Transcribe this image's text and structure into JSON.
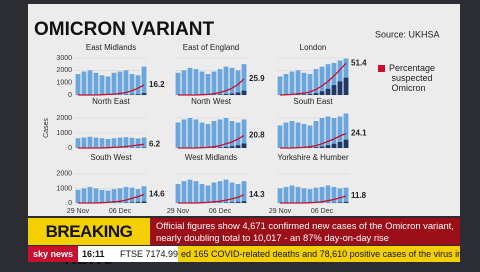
{
  "header": {
    "title": "OMICRON VARIANT",
    "source": "Source: UKHSA"
  },
  "legend": {
    "label": "Percentage suspected Omicron",
    "color": "#c8102e"
  },
  "y_axis_label": "Cases",
  "bar_color": "#6aa6dc",
  "omicron_color": "#1f3864",
  "y2lim": [
    0,
    60
  ],
  "rows": [
    {
      "ylim": [
        0,
        3000
      ],
      "yticks": [
        0,
        1000,
        2000,
        3000
      ]
    },
    {
      "ylim": [
        0,
        2400
      ],
      "yticks": [
        0,
        1000,
        2000
      ]
    },
    {
      "ylim": [
        0,
        2400
      ],
      "yticks": [
        0,
        1000,
        2000
      ]
    }
  ],
  "x_labels": [
    "29 Nov",
    "06 Dec"
  ],
  "panels": [
    {
      "name": "East Midlands",
      "cases": [
        1700,
        1900,
        2000,
        1800,
        1600,
        1500,
        1800,
        1900,
        2000,
        1700,
        1600,
        2300
      ],
      "omicron": [
        0,
        0,
        0,
        0,
        0,
        0,
        0,
        10,
        20,
        40,
        60,
        150
      ],
      "pct": [
        0,
        0,
        0,
        0,
        0.5,
        1,
        1.5,
        2.5,
        4,
        7,
        11,
        16.2
      ]
    },
    {
      "name": "East of England",
      "cases": [
        1800,
        2000,
        2200,
        2100,
        1900,
        1700,
        1900,
        2100,
        2300,
        2200,
        2000,
        2500
      ],
      "omicron": [
        0,
        0,
        0,
        0,
        0,
        10,
        20,
        40,
        80,
        120,
        200,
        350
      ],
      "pct": [
        0,
        0,
        0,
        0,
        0.5,
        1,
        2,
        4,
        7,
        11,
        17,
        25.9
      ]
    },
    {
      "name": "London",
      "cases": [
        1500,
        1700,
        1900,
        2000,
        1800,
        1700,
        2100,
        2300,
        2500,
        2600,
        2800,
        2950
      ],
      "omicron": [
        0,
        0,
        0,
        20,
        40,
        70,
        150,
        300,
        500,
        800,
        1100,
        1400
      ],
      "pct": [
        0,
        0.5,
        1,
        2,
        3,
        5,
        9,
        15,
        22,
        31,
        41,
        51.4
      ]
    },
    {
      "name": "North East",
      "cases": [
        650,
        700,
        750,
        700,
        650,
        600,
        650,
        700,
        720,
        680,
        640,
        700
      ],
      "omicron": [
        0,
        0,
        0,
        0,
        0,
        0,
        0,
        0,
        5,
        10,
        15,
        25
      ],
      "pct": [
        0,
        0,
        0,
        0,
        0,
        0.5,
        1,
        1.5,
        2.5,
        3.5,
        5,
        6.2
      ]
    },
    {
      "name": "North West",
      "cases": [
        1700,
        1900,
        2000,
        1900,
        1700,
        1600,
        1800,
        1900,
        2000,
        1800,
        1700,
        1900
      ],
      "omicron": [
        0,
        0,
        0,
        0,
        0,
        10,
        20,
        40,
        70,
        120,
        180,
        300
      ],
      "pct": [
        0,
        0,
        0,
        0,
        0.5,
        1,
        2,
        4,
        7,
        10,
        15,
        20.8
      ]
    },
    {
      "name": "South East",
      "cases": [
        1500,
        1700,
        1800,
        1700,
        1600,
        1500,
        1800,
        2000,
        2100,
        2000,
        2100,
        2300
      ],
      "omicron": [
        0,
        0,
        0,
        0,
        10,
        20,
        50,
        100,
        180,
        280,
        400,
        550
      ],
      "pct": [
        0,
        0,
        0,
        0.5,
        1,
        2,
        4,
        7,
        11,
        15,
        20,
        24.1
      ]
    },
    {
      "name": "South West",
      "cases": [
        900,
        1000,
        1100,
        1000,
        900,
        850,
        950,
        1000,
        1100,
        1050,
        950,
        1150
      ],
      "omicron": [
        0,
        0,
        0,
        0,
        0,
        0,
        5,
        10,
        20,
        40,
        60,
        100
      ],
      "pct": [
        0,
        0,
        0,
        0,
        0.5,
        1,
        2,
        3,
        5,
        8,
        11,
        14.6
      ]
    },
    {
      "name": "West Midlands",
      "cases": [
        1300,
        1500,
        1600,
        1500,
        1300,
        1200,
        1400,
        1500,
        1600,
        1400,
        1300,
        1500
      ],
      "omicron": [
        0,
        0,
        0,
        0,
        0,
        0,
        5,
        10,
        25,
        45,
        70,
        120
      ],
      "pct": [
        0,
        0,
        0,
        0,
        0.5,
        1,
        2,
        3,
        5,
        7,
        10,
        14.3
      ]
    },
    {
      "name": "Yorkshire & Humber",
      "cases": [
        1000,
        1100,
        1200,
        1100,
        1000,
        950,
        1050,
        1100,
        1200,
        1100,
        1000,
        1050
      ],
      "omicron": [
        0,
        0,
        0,
        0,
        0,
        0,
        0,
        5,
        10,
        20,
        40,
        70
      ],
      "pct": [
        0,
        0,
        0,
        0,
        0,
        0.5,
        1,
        2,
        4,
        6,
        9,
        11.8
      ]
    }
  ],
  "ticker": {
    "breaking": "BREAKING NEWS",
    "headline": "Official figures show 4,671 confirmed new cases of the Omicron variant, nearly doubling total to 10,017 - an 87% day-on-day rise",
    "channel": "sky news",
    "time": "16:11",
    "ftse": "FTSE 7174.99",
    "scroll": "ed 165 COVID-related deaths and 78,610 positive cases of the virus in"
  }
}
